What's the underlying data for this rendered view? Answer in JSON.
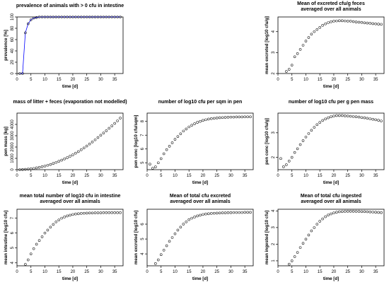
{
  "figure": {
    "rows": 3,
    "cols": 3
  },
  "chart_data": [
    {
      "panel": 0,
      "type": "line",
      "title": [
        "prevalence of animals with > 0 cfu in intestine"
      ],
      "xlabel": "time [d]",
      "ylabel": "prevalence [%]",
      "xlim": [
        0,
        38
      ],
      "ylim": [
        0,
        100
      ],
      "xticks": [
        0,
        5,
        10,
        15,
        20,
        25,
        30,
        35
      ],
      "yticks": [
        0,
        20,
        40,
        60,
        80,
        100
      ],
      "line_color": "#0000ff",
      "markers": "open-circle",
      "series": [
        {
          "x": [
            1,
            2,
            3,
            4,
            5,
            6,
            7,
            8,
            9,
            10,
            11,
            12,
            13,
            14,
            15,
            16,
            17,
            18,
            19,
            20,
            21,
            22,
            23,
            24,
            25,
            26,
            27,
            28,
            29,
            30,
            31,
            32,
            33,
            34,
            35,
            36,
            37
          ],
          "y": [
            0,
            0,
            72,
            88,
            95,
            98,
            99,
            100,
            100,
            100,
            100,
            100,
            100,
            100,
            100,
            100,
            100,
            100,
            100,
            100,
            100,
            100,
            100,
            100,
            100,
            100,
            100,
            100,
            100,
            100,
            100,
            100,
            100,
            100,
            100,
            100,
            100
          ]
        }
      ]
    },
    {
      "panel": 1,
      "empty": true
    },
    {
      "panel": 2,
      "type": "scatter",
      "title": [
        "Mean of excreted cfu/g feces",
        "averaged over all animals"
      ],
      "xlabel": "time [d]",
      "ylabel": "mean excreted [log10 cfu/g]",
      "xlim": [
        0,
        38
      ],
      "ylim": [
        2,
        4.7
      ],
      "xticks": [
        0,
        5,
        10,
        15,
        20,
        25,
        30,
        35
      ],
      "yticks": [
        2,
        3,
        4
      ],
      "markers": "open-circle",
      "series": [
        {
          "x": [
            3,
            4,
            5,
            6,
            7,
            8,
            9,
            10,
            11,
            12,
            13,
            14,
            15,
            16,
            17,
            18,
            19,
            20,
            21,
            22,
            23,
            24,
            25,
            26,
            27,
            28,
            29,
            30,
            31,
            32,
            33,
            34,
            35,
            36,
            37
          ],
          "y": [
            2.1,
            2.2,
            2.4,
            2.8,
            2.95,
            3.15,
            3.35,
            3.55,
            3.72,
            3.88,
            4.0,
            4.1,
            4.2,
            4.3,
            4.37,
            4.43,
            4.47,
            4.5,
            4.51,
            4.52,
            4.52,
            4.51,
            4.5,
            4.5,
            4.48,
            4.46,
            4.45,
            4.44,
            4.42,
            4.41,
            4.4,
            4.38,
            4.37,
            4.36,
            4.35
          ]
        }
      ]
    },
    {
      "panel": 3,
      "type": "scatter",
      "title": [
        "mass of litter + feces (evaporation not modelled)"
      ],
      "xlabel": "time [d]",
      "ylabel": "pen mass [kg]",
      "xlim": [
        0,
        38
      ],
      "ylim": [
        0,
        5000
      ],
      "xticks": [
        0,
        5,
        10,
        15,
        20,
        25,
        30,
        35
      ],
      "yticks": [
        0,
        1000,
        2000,
        3000,
        4000
      ],
      "markers": "open-circle",
      "series": [
        {
          "x": [
            1,
            2,
            3,
            4,
            5,
            6,
            7,
            8,
            9,
            10,
            11,
            12,
            13,
            14,
            15,
            16,
            17,
            18,
            19,
            20,
            21,
            22,
            23,
            24,
            25,
            26,
            27,
            28,
            29,
            30,
            31,
            32,
            33,
            34,
            35,
            36,
            37
          ],
          "y": [
            0,
            10,
            30,
            50,
            80,
            110,
            160,
            210,
            260,
            320,
            390,
            460,
            550,
            640,
            740,
            840,
            950,
            1060,
            1190,
            1310,
            1460,
            1600,
            1760,
            1920,
            2090,
            2270,
            2450,
            2640,
            2840,
            3040,
            3240,
            3440,
            3660,
            3870,
            4090,
            4320,
            4560
          ]
        }
      ]
    },
    {
      "panel": 4,
      "type": "scatter",
      "title": [
        "number of log10 cfu per sqm in pen"
      ],
      "xlabel": "time [d]",
      "ylabel": "pen conc [log10 cfu/sqm]",
      "xlim": [
        0,
        38
      ],
      "ylim": [
        4.5,
        8.6
      ],
      "xticks": [
        0,
        5,
        10,
        15,
        20,
        25,
        30,
        35
      ],
      "yticks": [
        5,
        6,
        7,
        8
      ],
      "markers": "open-circle",
      "series": [
        {
          "x": [
            1,
            2,
            3,
            4,
            5,
            6,
            7,
            8,
            9,
            10,
            11,
            12,
            13,
            14,
            15,
            16,
            17,
            18,
            19,
            20,
            21,
            22,
            23,
            24,
            25,
            26,
            27,
            28,
            29,
            30,
            31,
            32,
            33,
            34,
            35,
            36,
            37
          ],
          "y": [
            4.9,
            4.6,
            4.7,
            5.0,
            5.3,
            5.65,
            5.95,
            6.2,
            6.45,
            6.7,
            6.9,
            7.1,
            7.3,
            7.45,
            7.6,
            7.72,
            7.83,
            7.93,
            8.0,
            8.07,
            8.12,
            8.17,
            8.2,
            8.22,
            8.25,
            8.27,
            8.28,
            8.29,
            8.3,
            8.31,
            8.31,
            8.32,
            8.32,
            8.32,
            8.33,
            8.33,
            8.33
          ]
        }
      ]
    },
    {
      "panel": 5,
      "type": "scatter",
      "title": [
        "number of log10 cfu per g pen mass"
      ],
      "xlabel": "time [d]",
      "ylabel": "pen conc [log10 cfu/g]",
      "xlim": [
        0,
        38
      ],
      "ylim": [
        1.5,
        3.8
      ],
      "xticks": [
        0,
        5,
        10,
        15,
        20,
        25,
        30,
        35
      ],
      "yticks": [
        2,
        3
      ],
      "markers": "open-circle",
      "series": [
        {
          "x": [
            1,
            2,
            3,
            4,
            5,
            6,
            7,
            8,
            9,
            10,
            11,
            12,
            13,
            14,
            15,
            16,
            17,
            18,
            19,
            20,
            21,
            22,
            23,
            24,
            25,
            26,
            27,
            28,
            29,
            30,
            31,
            32,
            33,
            34,
            35,
            36,
            37
          ],
          "y": [
            1.95,
            1.62,
            1.7,
            1.85,
            2.0,
            2.2,
            2.35,
            2.52,
            2.68,
            2.83,
            2.97,
            3.1,
            3.22,
            3.33,
            3.42,
            3.5,
            3.56,
            3.61,
            3.65,
            3.68,
            3.7,
            3.7,
            3.7,
            3.69,
            3.68,
            3.67,
            3.66,
            3.65,
            3.64,
            3.62,
            3.61,
            3.59,
            3.57,
            3.55,
            3.53,
            3.51,
            3.48
          ]
        }
      ]
    },
    {
      "panel": 6,
      "type": "scatter",
      "title": [
        "mean total number of log10 cfu in intestine",
        "averaged over all animals"
      ],
      "xlabel": "time [d]",
      "ylabel": "mean intestine [log10 cfu]",
      "xlim": [
        0,
        38
      ],
      "ylim": [
        3.8,
        7.6
      ],
      "xticks": [
        0,
        5,
        10,
        15,
        20,
        25,
        30,
        35
      ],
      "yticks": [
        4,
        5,
        6,
        7
      ],
      "markers": "open-circle",
      "series": [
        {
          "x": [
            3,
            4,
            5,
            6,
            7,
            8,
            9,
            10,
            11,
            12,
            13,
            14,
            15,
            16,
            17,
            18,
            19,
            20,
            21,
            22,
            23,
            24,
            25,
            26,
            27,
            28,
            29,
            30,
            31,
            32,
            33,
            34,
            35,
            36,
            37
          ],
          "y": [
            3.9,
            4.2,
            4.6,
            4.95,
            5.25,
            5.5,
            5.75,
            6.0,
            6.2,
            6.4,
            6.58,
            6.75,
            6.88,
            7.0,
            7.08,
            7.15,
            7.2,
            7.25,
            7.28,
            7.3,
            7.32,
            7.33,
            7.34,
            7.35,
            7.35,
            7.36,
            7.36,
            7.36,
            7.37,
            7.37,
            7.37,
            7.37,
            7.37,
            7.37,
            7.37
          ]
        }
      ]
    },
    {
      "panel": 7,
      "type": "scatter",
      "title": [
        "Mean of total cfu excreted",
        "averaged over all animals"
      ],
      "xlabel": "time [d]",
      "ylabel": "mean excreted [log10 cfu]",
      "xlim": [
        0,
        38
      ],
      "ylim": [
        3.2,
        7.0
      ],
      "xticks": [
        0,
        5,
        10,
        15,
        20,
        25,
        30,
        35
      ],
      "yticks": [
        4,
        5,
        6
      ],
      "markers": "open-circle",
      "series": [
        {
          "x": [
            3,
            4,
            5,
            6,
            7,
            8,
            9,
            10,
            11,
            12,
            13,
            14,
            15,
            16,
            17,
            18,
            19,
            20,
            21,
            22,
            23,
            24,
            25,
            26,
            27,
            28,
            29,
            30,
            31,
            32,
            33,
            34,
            35,
            36,
            37
          ],
          "y": [
            3.35,
            3.6,
            3.95,
            4.25,
            4.55,
            4.85,
            5.1,
            5.35,
            5.6,
            5.8,
            6.0,
            6.15,
            6.3,
            6.4,
            6.48,
            6.55,
            6.6,
            6.65,
            6.68,
            6.7,
            6.72,
            6.73,
            6.74,
            6.75,
            6.76,
            6.76,
            6.77,
            6.77,
            6.78,
            6.78,
            6.78,
            6.78,
            6.79,
            6.79,
            6.79
          ]
        }
      ]
    },
    {
      "panel": 8,
      "type": "scatter",
      "title": [
        "Mean of total cfu ingested",
        "averaged over all animals"
      ],
      "xlabel": "time [d]",
      "ylabel": "mean ingested [log10 cfu]",
      "xlim": [
        0,
        38
      ],
      "ylim": [
        0.7,
        4.1
      ],
      "xticks": [
        0,
        5,
        10,
        15,
        20,
        25,
        30,
        35
      ],
      "yticks": [
        1,
        2,
        3,
        4
      ],
      "markers": "open-circle",
      "series": [
        {
          "x": [
            4,
            5,
            6,
            7,
            8,
            9,
            10,
            11,
            12,
            13,
            14,
            15,
            16,
            17,
            18,
            19,
            20,
            21,
            22,
            23,
            24,
            25,
            26,
            27,
            28,
            29,
            30,
            31,
            32,
            33,
            34,
            35,
            36,
            37
          ],
          "y": [
            0.8,
            1.0,
            1.25,
            1.5,
            1.8,
            2.05,
            2.3,
            2.55,
            2.8,
            3.0,
            3.2,
            3.38,
            3.52,
            3.65,
            3.75,
            3.82,
            3.88,
            3.92,
            3.95,
            3.96,
            3.97,
            3.98,
            3.98,
            3.98,
            3.97,
            3.97,
            3.96,
            3.96,
            3.95,
            3.94,
            3.93,
            3.92,
            3.91,
            3.9
          ]
        }
      ]
    }
  ]
}
